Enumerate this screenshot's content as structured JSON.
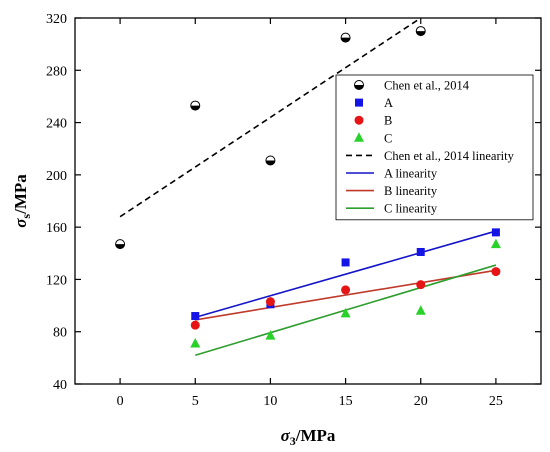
{
  "chart_data": {
    "type": "scatter",
    "xlim": [
      -3,
      28
    ],
    "ylim": [
      40,
      320
    ],
    "xticks": [
      0,
      5,
      10,
      15,
      20,
      25
    ],
    "yticks": [
      40,
      80,
      120,
      160,
      200,
      240,
      280,
      320
    ],
    "xlabel": {
      "symbol": "σ",
      "sub": "3",
      "unit": "/MPa"
    },
    "ylabel": {
      "symbol": "σ",
      "sub": "s",
      "unit": "/MPa"
    },
    "grid": false,
    "legend_position": "top-right",
    "series": [
      {
        "name": "Chen et al., 2014",
        "marker": "half-circle",
        "color": "#000000",
        "x": [
          0,
          5,
          10,
          15,
          20
        ],
        "y": [
          147,
          253,
          211,
          305,
          310
        ]
      },
      {
        "name": "A",
        "marker": "square",
        "color": "#1414e6",
        "x": [
          5,
          10,
          15,
          20,
          25
        ],
        "y": [
          92,
          101,
          133,
          141,
          156
        ]
      },
      {
        "name": "B",
        "marker": "circle",
        "color": "#e61414",
        "x": [
          5,
          10,
          15,
          20,
          25
        ],
        "y": [
          85,
          103,
          112,
          116,
          126
        ]
      },
      {
        "name": "C",
        "marker": "triangle",
        "color": "#28d228",
        "x": [
          5,
          10,
          15,
          20,
          25
        ],
        "y": [
          71,
          77,
          94,
          96,
          147
        ]
      }
    ],
    "fits": [
      {
        "name": "Chen et al., 2014 linearity",
        "color": "#000000",
        "dash": true,
        "x": [
          0,
          20
        ],
        "y": [
          168,
          320
        ]
      },
      {
        "name": "A linearity",
        "color": "#1414c8",
        "dash": false,
        "x": [
          5,
          25
        ],
        "y": [
          91,
          157
        ]
      },
      {
        "name": "B linearity",
        "color": "#c0392b",
        "dash": false,
        "x": [
          5,
          25
        ],
        "y": [
          89,
          127
        ]
      },
      {
        "name": "C linearity",
        "color": "#2e9e2e",
        "dash": false,
        "x": [
          5,
          25
        ],
        "y": [
          62,
          131
        ]
      }
    ]
  }
}
